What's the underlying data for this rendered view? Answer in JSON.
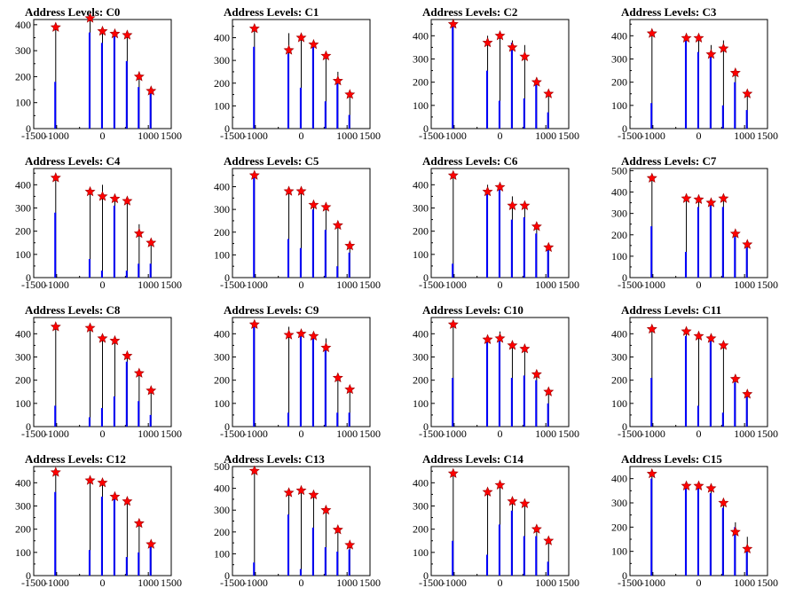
{
  "title_prefix": "Address Levels:",
  "colors": {
    "frame": "#000000",
    "total_bar": "#000000",
    "sub_bar": "#0000ff",
    "marker": "#ff0000"
  },
  "chart_data": [
    {
      "name": "C0",
      "type": "bar",
      "xlim": [
        -1500,
        1500
      ],
      "ylim": [
        0,
        420
      ],
      "xticks": [
        -1500,
        -1000,
        0,
        1000,
        1500
      ],
      "yticks": [
        0,
        100,
        200,
        300,
        400
      ],
      "x": [
        -1020,
        -270,
        0,
        270,
        540,
        800,
        1060
      ],
      "values": [
        390,
        430,
        380,
        370,
        360,
        220,
        150
      ],
      "sub_values": [
        180,
        370,
        330,
        360,
        260,
        160,
        140
      ],
      "markers": [
        390,
        425,
        375,
        365,
        360,
        200,
        145
      ]
    },
    {
      "name": "C1",
      "type": "bar",
      "xlim": [
        -1500,
        1500
      ],
      "ylim": [
        0,
        480
      ],
      "xticks": [
        -1500,
        -1000,
        0,
        1000,
        1500
      ],
      "yticks": [
        0,
        100,
        200,
        300,
        400
      ],
      "x": [
        -1020,
        -270,
        0,
        270,
        540,
        800,
        1060
      ],
      "values": [
        450,
        420,
        410,
        380,
        330,
        250,
        150
      ],
      "sub_values": [
        360,
        330,
        180,
        360,
        120,
        200,
        60
      ],
      "markers": [
        440,
        345,
        400,
        370,
        320,
        210,
        150
      ]
    },
    {
      "name": "C2",
      "type": "bar",
      "xlim": [
        -1500,
        1500
      ],
      "ylim": [
        0,
        470
      ],
      "xticks": [
        -1500,
        -1000,
        0,
        1000,
        1500
      ],
      "yticks": [
        0,
        100,
        200,
        300,
        400
      ],
      "x": [
        -1020,
        -270,
        0,
        270,
        540,
        800,
        1060
      ],
      "values": [
        450,
        400,
        410,
        380,
        360,
        220,
        150
      ],
      "sub_values": [
        440,
        250,
        120,
        370,
        130,
        200,
        70
      ],
      "markers": [
        450,
        370,
        400,
        350,
        310,
        200,
        150
      ]
    },
    {
      "name": "C3",
      "type": "bar",
      "xlim": [
        -1500,
        1500
      ],
      "ylim": [
        0,
        470
      ],
      "xticks": [
        -1500,
        -1000,
        0,
        1000,
        1500
      ],
      "yticks": [
        0,
        100,
        200,
        300,
        400
      ],
      "x": [
        -1020,
        -270,
        0,
        270,
        540,
        800,
        1060
      ],
      "values": [
        420,
        410,
        400,
        360,
        380,
        250,
        150
      ],
      "sub_values": [
        110,
        390,
        330,
        320,
        100,
        200,
        80
      ],
      "markers": [
        410,
        390,
        390,
        320,
        345,
        240,
        150
      ]
    },
    {
      "name": "C4",
      "type": "bar",
      "xlim": [
        -1500,
        1500
      ],
      "ylim": [
        0,
        470
      ],
      "xticks": [
        -1500,
        -1000,
        0,
        1000,
        1500
      ],
      "yticks": [
        0,
        100,
        200,
        300,
        400
      ],
      "x": [
        -1020,
        -270,
        0,
        270,
        540,
        800,
        1060
      ],
      "values": [
        430,
        370,
        400,
        350,
        320,
        230,
        150
      ],
      "sub_values": [
        280,
        80,
        30,
        310,
        30,
        60,
        60
      ],
      "markers": [
        430,
        370,
        350,
        340,
        330,
        190,
        150
      ]
    },
    {
      "name": "C5",
      "type": "bar",
      "xlim": [
        -1500,
        1500
      ],
      "ylim": [
        0,
        480
      ],
      "xticks": [
        -1500,
        -1000,
        0,
        1000,
        1500
      ],
      "yticks": [
        0,
        100,
        200,
        300,
        400
      ],
      "x": [
        -1020,
        -270,
        0,
        270,
        540,
        800,
        1060
      ],
      "values": [
        460,
        380,
        380,
        330,
        320,
        230,
        140
      ],
      "sub_values": [
        450,
        170,
        130,
        300,
        210,
        50,
        110
      ],
      "markers": [
        450,
        380,
        380,
        320,
        310,
        230,
        140
      ]
    },
    {
      "name": "C6",
      "type": "bar",
      "xlim": [
        -1500,
        1500
      ],
      "ylim": [
        0,
        470
      ],
      "xticks": [
        -1500,
        -1000,
        0,
        1000,
        1500
      ],
      "yticks": [
        0,
        100,
        200,
        300,
        400
      ],
      "x": [
        -1020,
        -270,
        0,
        270,
        540,
        800,
        1060
      ],
      "values": [
        440,
        400,
        400,
        350,
        320,
        220,
        130
      ],
      "sub_values": [
        60,
        370,
        380,
        250,
        260,
        190,
        120
      ],
      "markers": [
        440,
        370,
        390,
        310,
        310,
        220,
        130
      ]
    },
    {
      "name": "C7",
      "type": "bar",
      "xlim": [
        -1500,
        1500
      ],
      "ylim": [
        0,
        510
      ],
      "xticks": [
        -1500,
        -1000,
        0,
        1000,
        1500
      ],
      "yticks": [
        0,
        100,
        200,
        300,
        400,
        500
      ],
      "x": [
        -1020,
        -270,
        0,
        270,
        540,
        800,
        1060
      ],
      "values": [
        470,
        370,
        370,
        350,
        380,
        210,
        160
      ],
      "sub_values": [
        240,
        120,
        330,
        340,
        330,
        190,
        140
      ],
      "markers": [
        465,
        370,
        365,
        350,
        370,
        205,
        155
      ]
    },
    {
      "name": "C8",
      "type": "bar",
      "xlim": [
        -1500,
        1500
      ],
      "ylim": [
        0,
        470
      ],
      "xticks": [
        -1500,
        -1000,
        0,
        1000,
        1500
      ],
      "yticks": [
        0,
        100,
        200,
        300,
        400
      ],
      "x": [
        -1020,
        -270,
        0,
        270,
        540,
        800,
        1060
      ],
      "values": [
        430,
        430,
        390,
        380,
        320,
        240,
        160
      ],
      "sub_values": [
        90,
        40,
        80,
        130,
        280,
        110,
        50
      ],
      "markers": [
        430,
        425,
        380,
        370,
        305,
        230,
        155
      ]
    },
    {
      "name": "C9",
      "type": "bar",
      "xlim": [
        -1500,
        1500
      ],
      "ylim": [
        0,
        470
      ],
      "xticks": [
        -1500,
        -1000,
        0,
        1000,
        1500
      ],
      "yticks": [
        0,
        100,
        200,
        300,
        400
      ],
      "x": [
        -1020,
        -270,
        0,
        270,
        540,
        800,
        1060
      ],
      "values": [
        440,
        430,
        420,
        400,
        380,
        230,
        160
      ],
      "sub_values": [
        430,
        60,
        390,
        390,
        330,
        60,
        60
      ],
      "markers": [
        440,
        395,
        400,
        390,
        340,
        210,
        160
      ]
    },
    {
      "name": "C10",
      "type": "bar",
      "xlim": [
        -1500,
        1500
      ],
      "ylim": [
        0,
        470
      ],
      "xticks": [
        -1500,
        -1000,
        0,
        1000,
        1500
      ],
      "yticks": [
        0,
        100,
        200,
        300,
        400
      ],
      "x": [
        -1020,
        -270,
        0,
        270,
        540,
        800,
        1060
      ],
      "values": [
        440,
        390,
        410,
        370,
        340,
        230,
        150
      ],
      "sub_values": [
        210,
        380,
        390,
        210,
        220,
        200,
        100
      ],
      "markers": [
        440,
        375,
        380,
        350,
        335,
        225,
        150
      ]
    },
    {
      "name": "C11",
      "type": "bar",
      "xlim": [
        -1500,
        1500
      ],
      "ylim": [
        0,
        470
      ],
      "xticks": [
        -1500,
        -1000,
        0,
        1000,
        1500
      ],
      "yticks": [
        0,
        100,
        200,
        300,
        400
      ],
      "x": [
        -1020,
        -270,
        0,
        270,
        540,
        800,
        1060
      ],
      "values": [
        420,
        400,
        400,
        380,
        360,
        220,
        150
      ],
      "sub_values": [
        210,
        390,
        90,
        370,
        60,
        190,
        140
      ],
      "markers": [
        420,
        410,
        390,
        380,
        350,
        205,
        140
      ]
    },
    {
      "name": "C12",
      "type": "bar",
      "xlim": [
        -1500,
        1500
      ],
      "ylim": [
        0,
        470
      ],
      "xticks": [
        -1500,
        -1000,
        0,
        1000,
        1500
      ],
      "yticks": [
        0,
        100,
        200,
        300,
        400
      ],
      "x": [
        -1020,
        -270,
        0,
        270,
        540,
        800,
        1060
      ],
      "values": [
        450,
        410,
        400,
        350,
        330,
        230,
        140
      ],
      "sub_values": [
        360,
        110,
        340,
        330,
        80,
        100,
        130
      ],
      "markers": [
        445,
        410,
        400,
        340,
        320,
        225,
        135
      ]
    },
    {
      "name": "C13",
      "type": "bar",
      "xlim": [
        -1500,
        1500
      ],
      "ylim": [
        0,
        500
      ],
      "xticks": [
        -1500,
        -1000,
        0,
        1000,
        1500
      ],
      "yticks": [
        0,
        100,
        200,
        300,
        400,
        500
      ],
      "x": [
        -1020,
        -270,
        0,
        270,
        540,
        800,
        1060
      ],
      "values": [
        480,
        380,
        400,
        370,
        320,
        210,
        150
      ],
      "sub_values": [
        60,
        280,
        30,
        220,
        130,
        110,
        120
      ],
      "markers": [
        480,
        380,
        390,
        370,
        300,
        210,
        140
      ]
    },
    {
      "name": "C14",
      "type": "bar",
      "xlim": [
        -1500,
        1500
      ],
      "ylim": [
        0,
        470
      ],
      "xticks": [
        -1500,
        -1000,
        0,
        1000,
        1500
      ],
      "yticks": [
        0,
        100,
        200,
        300,
        400
      ],
      "x": [
        -1020,
        -270,
        0,
        270,
        540,
        800,
        1060
      ],
      "values": [
        440,
        370,
        400,
        330,
        330,
        210,
        160
      ],
      "sub_values": [
        150,
        90,
        220,
        280,
        170,
        170,
        60
      ],
      "markers": [
        440,
        360,
        390,
        320,
        310,
        200,
        150
      ]
    },
    {
      "name": "C15",
      "type": "bar",
      "xlim": [
        -1500,
        1500
      ],
      "ylim": [
        0,
        450
      ],
      "xticks": [
        -1500,
        -1000,
        0,
        1000,
        1500
      ],
      "yticks": [
        0,
        100,
        200,
        300,
        400
      ],
      "x": [
        -1020,
        -270,
        0,
        270,
        540,
        800,
        1060
      ],
      "values": [
        420,
        370,
        370,
        350,
        310,
        220,
        160
      ],
      "sub_values": [
        400,
        360,
        360,
        340,
        280,
        200,
        120
      ],
      "markers": [
        420,
        370,
        370,
        360,
        300,
        180,
        110
      ]
    }
  ]
}
